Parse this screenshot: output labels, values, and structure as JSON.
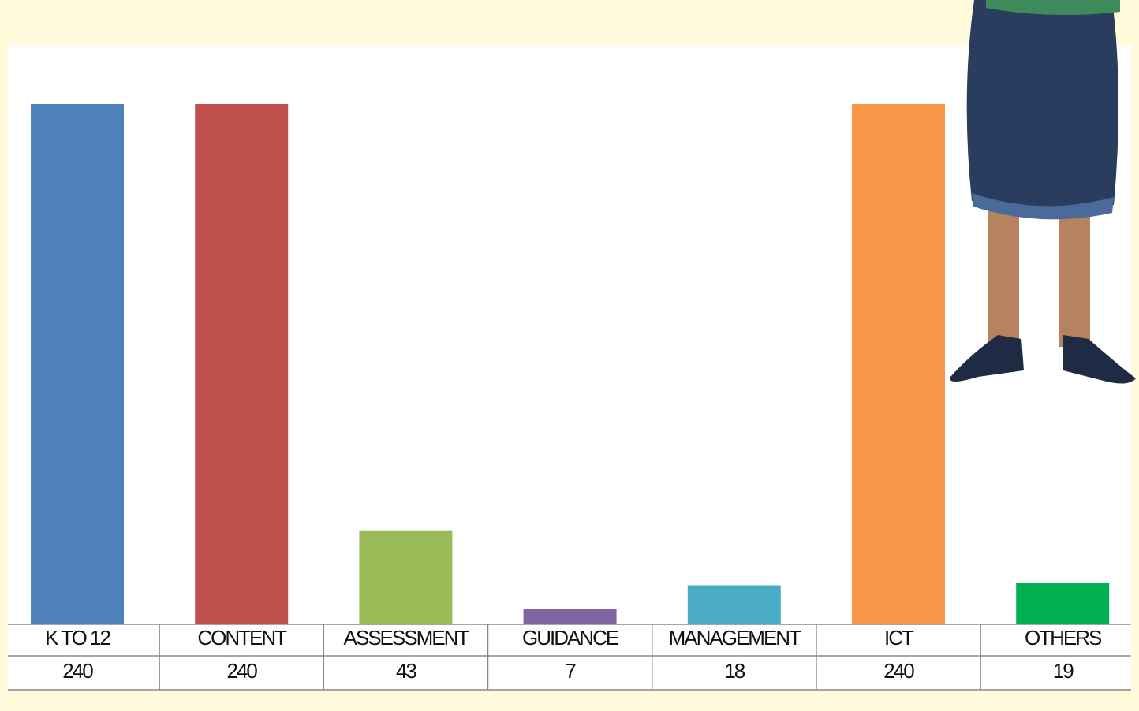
{
  "chart_data": {
    "type": "bar",
    "categories": [
      "K TO 12",
      "CONTENT",
      "ASSESSMENT",
      "GUIDANCE",
      "MANAGEMENT",
      "ICT",
      "OTHERS"
    ],
    "values": [
      240,
      240,
      43,
      7,
      18,
      240,
      19
    ],
    "colors": [
      "#4f81bd",
      "#c0504d",
      "#9bbb59",
      "#8064a2",
      "#4bacc6",
      "#f79646",
      "#00b050"
    ]
  }
}
